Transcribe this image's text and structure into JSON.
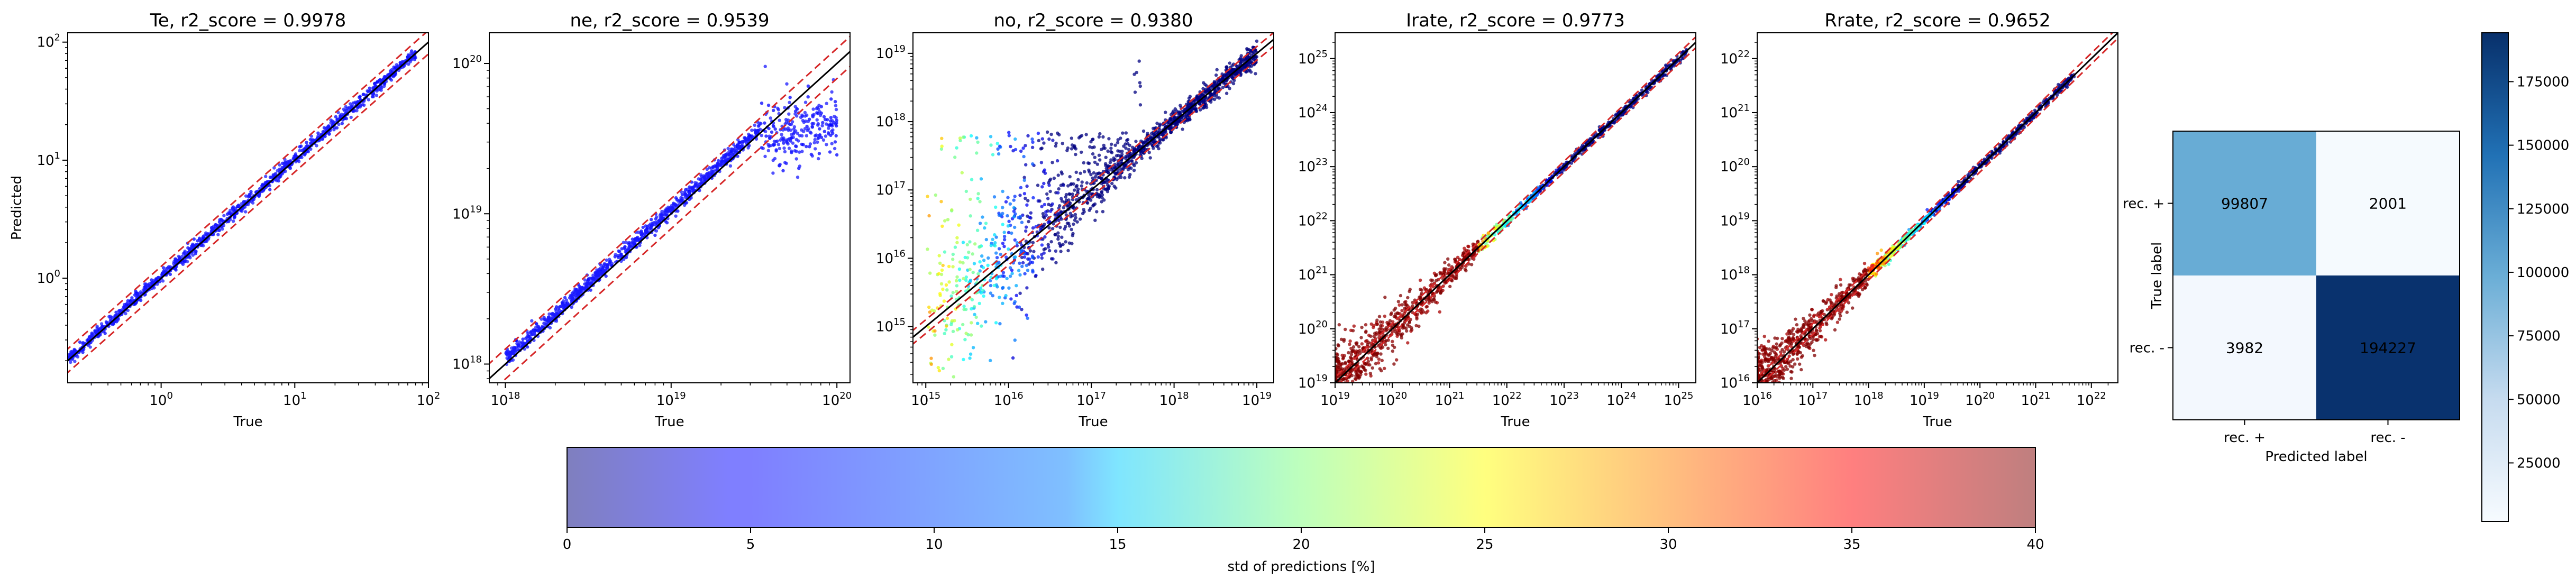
{
  "chart_data": [
    {
      "type": "scatter",
      "title": "Te, r2_score = 0.9978",
      "xlabel": "True",
      "ylabel": "Predicted",
      "xscale": "log",
      "yscale": "log",
      "xlim": [
        0.2,
        100
      ],
      "ylim": [
        0.13,
        120
      ],
      "xticks": [
        {
          "v": 1,
          "e": "0"
        },
        {
          "v": 10,
          "e": "1"
        },
        {
          "v": 100,
          "e": "2"
        }
      ],
      "yticks": [
        {
          "v": 1,
          "e": "0"
        },
        {
          "v": 10,
          "e": "1"
        },
        {
          "v": 100,
          "e": "2"
        }
      ],
      "series": [
        {
          "x_range": [
            0.2,
            80
          ],
          "y_over_x": 1.0
        }
      ],
      "reference_lines": [
        "black y = x",
        "red dashed upper bound",
        "red dashed lower bound"
      ]
    },
    {
      "type": "scatter",
      "title": "ne, r2_score = 0.9539",
      "xlabel": "True",
      "ylabel": "",
      "xscale": "log",
      "yscale": "log",
      "xlim": [
        8e+17,
        1.2e+20
      ],
      "ylim": [
        7.5e+17,
        1.6e+20
      ],
      "xticks": [
        {
          "v": 1e+18,
          "e": "18"
        },
        {
          "v": 1e+19,
          "e": "19"
        },
        {
          "v": 1e+20,
          "e": "20"
        }
      ],
      "yticks": [
        {
          "v": 1e+18,
          "e": "18"
        },
        {
          "v": 1e+19,
          "e": "19"
        },
        {
          "v": 1e+20,
          "e": "20"
        }
      ],
      "series": [
        {
          "x_range": [
            1e+18,
            1e+20
          ],
          "saturation_start": 3.5e+19
        }
      ],
      "reference_lines": [
        "black y = x",
        "red dashed upper bound",
        "red dashed lower bound"
      ]
    },
    {
      "type": "scatter",
      "title": "no, r2_score = 0.9380",
      "xlabel": "True",
      "ylabel": "",
      "xscale": "log",
      "yscale": "log",
      "xlim": [
        700000000000000.0,
        1.6e+19
      ],
      "ylim": [
        150000000000000.0,
        2e+19
      ],
      "xticks": [
        {
          "v": 1000000000000000.0,
          "e": "15"
        },
        {
          "v": 1e+16,
          "e": "16"
        },
        {
          "v": 1e+17,
          "e": "17"
        },
        {
          "v": 1e+18,
          "e": "18"
        },
        {
          "v": 1e+19,
          "e": "19"
        }
      ],
      "yticks": [
        {
          "v": 1000000000000000.0,
          "e": "15"
        },
        {
          "v": 1e+16,
          "e": "16"
        },
        {
          "v": 1e+17,
          "e": "17"
        },
        {
          "v": 1e+18,
          "e": "18"
        },
        {
          "v": 1e+19,
          "e": "19"
        }
      ],
      "series": [
        {
          "x_range": [
            1000000000000000.0,
            1e+19
          ],
          "outlier_cloud_y_max": 7e+17
        }
      ],
      "reference_lines": [
        "black y = x",
        "red dashed upper bound",
        "red dashed lower bound"
      ]
    },
    {
      "type": "scatter",
      "title": "Irate, r2_score = 0.9773",
      "xlabel": "True",
      "ylabel": "",
      "xscale": "log",
      "yscale": "log",
      "xlim": [
        1e+19,
        2e+25
      ],
      "ylim": [
        1e+19,
        3e+25
      ],
      "xticks": [
        {
          "v": 1e+19,
          "e": "19"
        },
        {
          "v": 1e+20,
          "e": "20"
        },
        {
          "v": 1e+21,
          "e": "21"
        },
        {
          "v": 1e+22,
          "e": "22"
        },
        {
          "v": 1e+23,
          "e": "23"
        },
        {
          "v": 1e+24,
          "e": "24"
        },
        {
          "v": 1e+25,
          "e": "25"
        }
      ],
      "yticks": [
        {
          "v": 1e+19,
          "e": "19"
        },
        {
          "v": 1e+20,
          "e": "20"
        },
        {
          "v": 1e+21,
          "e": "21"
        },
        {
          "v": 1e+22,
          "e": "22"
        },
        {
          "v": 1e+23,
          "e": "23"
        },
        {
          "v": 1e+24,
          "e": "24"
        },
        {
          "v": 1e+25,
          "e": "25"
        }
      ],
      "series": [
        {
          "x_range": [
            1e+19,
            1.5e+25
          ]
        }
      ],
      "reference_lines": [
        "black y = x",
        "red dashed upper bound",
        "red dashed lower bound"
      ]
    },
    {
      "type": "scatter",
      "title": "Rrate, r2_score = 0.9652",
      "xlabel": "True",
      "ylabel": "",
      "xscale": "log",
      "yscale": "log",
      "xlim": [
        1e+16,
        3e+22
      ],
      "ylim": [
        1e+16,
        3e+22
      ],
      "xticks": [
        {
          "v": 1e+16,
          "e": "16"
        },
        {
          "v": 1e+17,
          "e": "17"
        },
        {
          "v": 1e+18,
          "e": "18"
        },
        {
          "v": 1e+19,
          "e": "19"
        },
        {
          "v": 1e+20,
          "e": "20"
        },
        {
          "v": 1e+21,
          "e": "21"
        },
        {
          "v": 1e+22,
          "e": "22"
        }
      ],
      "yticks": [
        {
          "v": 1e+16,
          "e": "16"
        },
        {
          "v": 1e+17,
          "e": "17"
        },
        {
          "v": 1e+18,
          "e": "18"
        },
        {
          "v": 1e+19,
          "e": "19"
        },
        {
          "v": 1e+20,
          "e": "20"
        },
        {
          "v": 1e+21,
          "e": "21"
        },
        {
          "v": 1e+22,
          "e": "22"
        }
      ],
      "series": [
        {
          "x_range": [
            1e+16,
            5e+21
          ]
        }
      ],
      "reference_lines": [
        "black y = x",
        "red dashed upper bound",
        "red dashed lower bound"
      ]
    },
    {
      "type": "heatmap",
      "title": "",
      "xlabel": "Predicted label",
      "ylabel": "True label",
      "x_categories": [
        "rec. +",
        "rec. -"
      ],
      "y_categories": [
        "rec. +",
        "rec. -"
      ],
      "values": [
        [
          99807,
          2001
        ],
        [
          3982,
          194227
        ]
      ],
      "colormap": "Blues",
      "colorbar": {
        "min": 0,
        "max": 196000,
        "ticks": [
          25000,
          50000,
          75000,
          100000,
          125000,
          150000,
          175000
        ]
      }
    },
    {
      "type": "colorbar",
      "xlabel": "std of predictions [%]",
      "range": [
        0,
        40
      ],
      "ticks": [
        0,
        5,
        10,
        15,
        20,
        25,
        30,
        35,
        40
      ],
      "colormap": "jet",
      "alpha": 0.5
    }
  ],
  "colors": {
    "ref_line": "#000000",
    "bound_line": "#d62728",
    "point_low_std": "#0000ff",
    "point_high_std": "#800000"
  }
}
